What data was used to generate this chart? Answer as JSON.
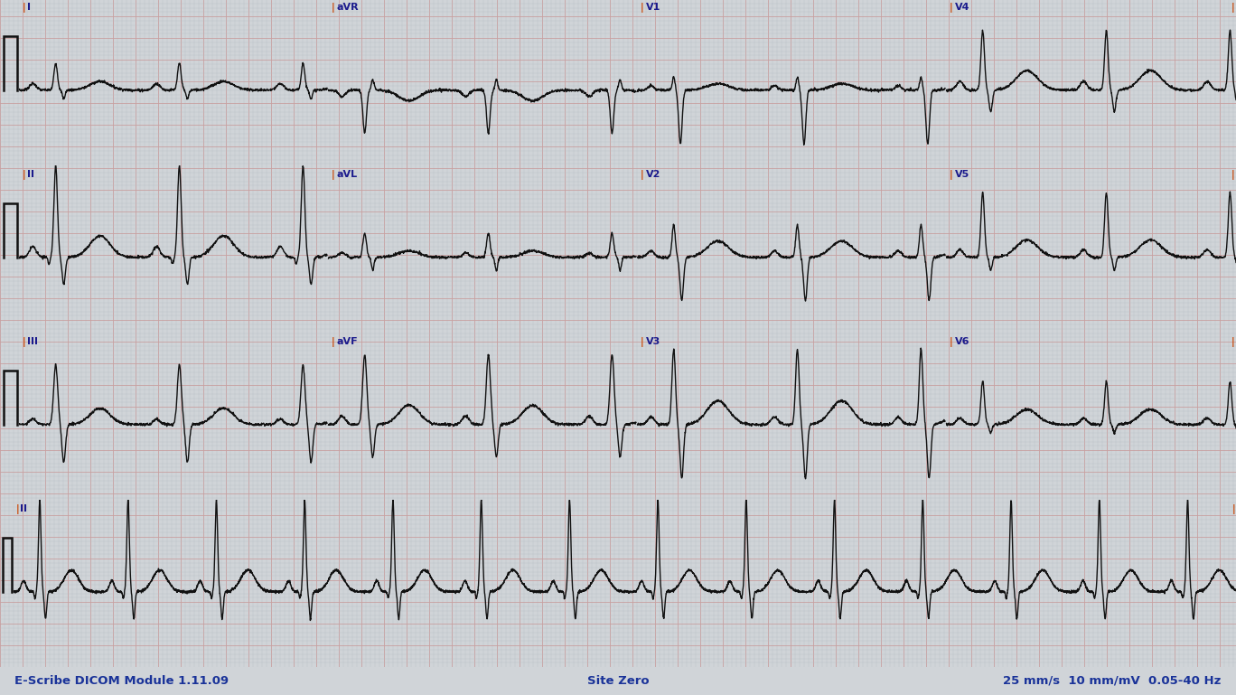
{
  "bg_color": "#d0d4d8",
  "grid_minor_color": "#b8bec4",
  "grid_major_color": "#c8a0a0",
  "ecg_color": "#111111",
  "label_lead_color": "#1a1a8c",
  "label_pipe_color": "#cc4400",
  "footer_color": "#1a3399",
  "footer_left": "E-Scribe DICOM Module 1.11.09",
  "footer_center": "Site Zero",
  "footer_right": "25 mm/s  10 mm/mV  0.05-40 Hz",
  "fig_width": 13.68,
  "fig_height": 7.69,
  "dpi": 100
}
